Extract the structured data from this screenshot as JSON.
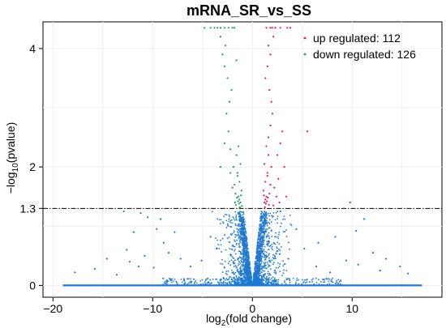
{
  "chart_data": {
    "type": "scatter",
    "title": "mRNA_SR_vs_SS",
    "xlabel": "log2(fold change)",
    "ylabel": "-log10(pvalue)",
    "xlim": [
      -21,
      19
    ],
    "ylim": [
      -0.2,
      4.45
    ],
    "x_ticks": [
      -20,
      -10,
      0,
      10
    ],
    "x_tick_labels": [
      "-20",
      "-10",
      "0",
      "10"
    ],
    "y_ticks": [
      0,
      1.3,
      2,
      4
    ],
    "y_tick_labels": [
      "0",
      "1.3",
      "2",
      "4"
    ],
    "threshold_line": 1.3,
    "grid": true,
    "legend_position": "top-right",
    "series": [
      {
        "name": "up regulated: 112",
        "color": "#e8195a",
        "points": [
          [
            1.2,
            1.4
          ],
          [
            1.4,
            1.5
          ],
          [
            1.1,
            1.6
          ],
          [
            1.3,
            1.75
          ],
          [
            1.5,
            1.9
          ],
          [
            1.2,
            2.05
          ],
          [
            1.6,
            2.2
          ],
          [
            1.4,
            2.35
          ],
          [
            1.3,
            1.45
          ],
          [
            1.7,
            1.55
          ],
          [
            1.8,
            1.7
          ],
          [
            1.5,
            1.85
          ],
          [
            1.9,
            2.0
          ],
          [
            1.6,
            2.5
          ],
          [
            1.8,
            2.7
          ],
          [
            2.0,
            2.9
          ],
          [
            1.9,
            3.1
          ],
          [
            1.7,
            3.3
          ],
          [
            1.3,
            3.5
          ],
          [
            1.5,
            3.7
          ],
          [
            1.8,
            3.9
          ],
          [
            1.6,
            4.05
          ],
          [
            2.1,
            4.2
          ],
          [
            2.3,
            4.35
          ],
          [
            1.4,
            4.35
          ],
          [
            1.8,
            4.35
          ],
          [
            2.0,
            4.35
          ],
          [
            2.8,
            4.35
          ],
          [
            3.5,
            4.35
          ],
          [
            3.8,
            4.35
          ],
          [
            2.5,
            2.2
          ],
          [
            2.8,
            2.4
          ],
          [
            3.0,
            2.6
          ],
          [
            3.2,
            2.0
          ],
          [
            2.6,
            1.8
          ],
          [
            2.2,
            1.65
          ],
          [
            2.4,
            1.5
          ],
          [
            2.1,
            1.35
          ],
          [
            2.7,
            1.4
          ],
          [
            3.4,
            1.5
          ],
          [
            5.5,
            2.6
          ],
          [
            9.8,
            1.4
          ],
          [
            1.25,
            1.32
          ],
          [
            1.35,
            1.38
          ],
          [
            1.45,
            1.42
          ],
          [
            1.55,
            1.48
          ],
          [
            1.65,
            1.36
          ],
          [
            1.15,
            1.52
          ]
        ]
      },
      {
        "name": "down regulated: 126",
        "color": "#1b9e5a",
        "points": [
          [
            -1.2,
            1.4
          ],
          [
            -1.4,
            1.5
          ],
          [
            -1.1,
            1.6
          ],
          [
            -1.3,
            1.75
          ],
          [
            -1.5,
            1.9
          ],
          [
            -1.2,
            2.05
          ],
          [
            -1.6,
            2.2
          ],
          [
            -1.4,
            2.35
          ],
          [
            -1.3,
            1.45
          ],
          [
            -1.7,
            1.55
          ],
          [
            -1.8,
            1.7
          ],
          [
            -1.5,
            1.85
          ],
          [
            -1.9,
            2.0
          ],
          [
            -2.2,
            2.3
          ],
          [
            -2.4,
            2.6
          ],
          [
            -2.6,
            2.9
          ],
          [
            -2.3,
            3.1
          ],
          [
            -2.1,
            3.3
          ],
          [
            -2.5,
            3.5
          ],
          [
            -2.8,
            3.7
          ],
          [
            -3.0,
            3.9
          ],
          [
            -2.7,
            4.05
          ],
          [
            -3.2,
            4.2
          ],
          [
            -1.6,
            3.8
          ],
          [
            -4.8,
            4.35
          ],
          [
            -4.2,
            4.35
          ],
          [
            -3.8,
            4.35
          ],
          [
            -3.5,
            4.35
          ],
          [
            -3.2,
            4.35
          ],
          [
            -2.8,
            4.35
          ],
          [
            -2.4,
            4.35
          ],
          [
            -2.0,
            4.35
          ],
          [
            -1.8,
            4.35
          ],
          [
            -2.2,
            1.9
          ],
          [
            -2.0,
            1.65
          ],
          [
            -1.75,
            1.4
          ],
          [
            -3.2,
            2.0
          ],
          [
            -2.8,
            2.4
          ],
          [
            -1.25,
            1.32
          ],
          [
            -1.35,
            1.38
          ],
          [
            -1.45,
            1.42
          ],
          [
            -1.55,
            1.48
          ],
          [
            -1.65,
            1.36
          ],
          [
            -1.15,
            1.52
          ],
          [
            -1.05,
            1.34
          ]
        ]
      },
      {
        "name": "not significant",
        "color": "#1f78d1",
        "points": [
          [
            -11.2,
            1.22
          ],
          [
            -10.5,
            1.15
          ],
          [
            -9.6,
            0.95
          ],
          [
            -11.9,
            0.9
          ],
          [
            -12.6,
            0.6
          ],
          [
            -12.3,
            0.4
          ],
          [
            -10.8,
            0.5
          ],
          [
            -9.9,
            0.3
          ],
          [
            -8.4,
            0.55
          ],
          [
            -7.2,
            0.45
          ],
          [
            -14.6,
            0.45
          ],
          [
            -17.8,
            0.22
          ],
          [
            -6.2,
            0.32
          ],
          [
            -5.1,
            0.42
          ],
          [
            -4.2,
            0.82
          ],
          [
            -3.6,
            0.62
          ],
          [
            -8.9,
            0.72
          ],
          [
            -11.4,
            0.32
          ],
          [
            -13.6,
            0.18
          ],
          [
            -9.2,
            1.12
          ],
          [
            3.6,
            0.45
          ],
          [
            5.2,
            0.62
          ],
          [
            6.4,
            0.32
          ],
          [
            7.8,
            0.22
          ],
          [
            9.4,
            0.42
          ],
          [
            10.6,
            0.35
          ],
          [
            12.1,
            0.55
          ],
          [
            13.4,
            0.45
          ],
          [
            14.8,
            0.32
          ],
          [
            11.2,
            1.12
          ],
          [
            10.4,
            0.92
          ],
          [
            6.6,
            0.72
          ],
          [
            8.3,
            0.82
          ],
          [
            15.6,
            0.2
          ],
          [
            12.8,
            0.25
          ],
          [
            -15.8,
            0.28
          ],
          [
            -12.9,
            1.25
          ],
          [
            -7.8,
            0.9
          ],
          [
            4.4,
            0.95
          ],
          [
            2.8,
            1.25
          ]
        ]
      }
    ],
    "baseline": {
      "y": 0,
      "x_min": -19,
      "x_max": 17,
      "color": "#1f78d1"
    },
    "cloud": {
      "color": "#1f78d1",
      "description_counts": "dense volcano cloud of not-significant genes near x=0 below the 1.3 threshold"
    }
  }
}
